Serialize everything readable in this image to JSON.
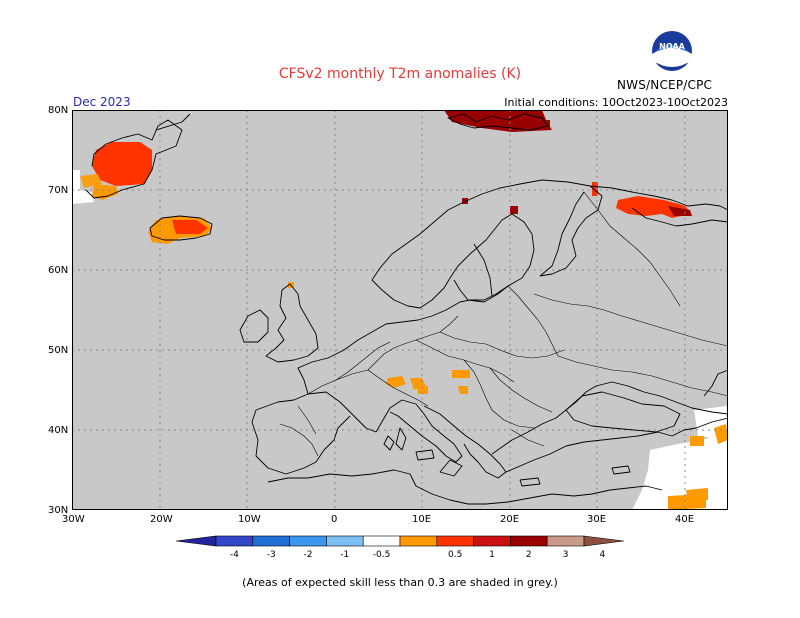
{
  "title": "CFSv2 monthly T2m anomalies (K)",
  "organization": "NWS/NCEP/CPC",
  "logo_text": "NOAA",
  "month_label": "Dec 2023",
  "initial_conditions": "Initial conditions: 10Oct2023-10Oct2023",
  "lat_labels": [
    "80N",
    "70N",
    "60N",
    "50N",
    "40N",
    "30N"
  ],
  "lon_labels": [
    "30W",
    "20W",
    "10W",
    "0",
    "10E",
    "20E",
    "30E",
    "40E"
  ],
  "colorbar": {
    "tick_labels": [
      "-4",
      "-3",
      "-2",
      "-1",
      "-0.5",
      "0.5",
      "1",
      "2",
      "3",
      "4"
    ],
    "colors": [
      "#22229c",
      "#3346c8",
      "#1f6fd6",
      "#3a96ee",
      "#7fc0f4",
      "#ffffff",
      "#ff9900",
      "#ff3300",
      "#cc1111",
      "#990000",
      "#c89a8a",
      "#8b5040"
    ]
  },
  "footnote": "(Areas of expected skill less than 0.3 are shaded in grey.)",
  "colors": {
    "map_background": "#c8c8c8",
    "no_signal": "#ffffff",
    "grid": "#8a8a8a",
    "coast": "#000000"
  }
}
